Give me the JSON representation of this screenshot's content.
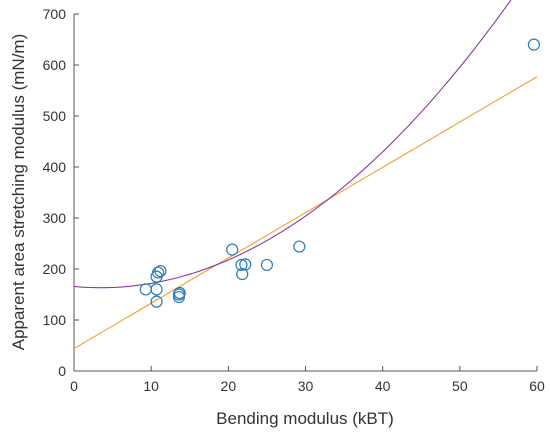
{
  "chart_data": {
    "type": "scatter",
    "xlabel": "Bending modulus (kBT)",
    "ylabel": "Apparent area stretching modulus (mN/m)",
    "xlim": [
      0,
      60
    ],
    "ylim": [
      0,
      700
    ],
    "xticks": [
      0,
      10,
      20,
      30,
      40,
      50,
      60
    ],
    "yticks": [
      0,
      100,
      200,
      300,
      400,
      500,
      600,
      700
    ],
    "xtick_labels": [
      "0",
      "10",
      "20",
      "30",
      "40",
      "50",
      "60"
    ],
    "ytick_labels": [
      "0",
      "100",
      "200",
      "300",
      "400",
      "500",
      "600",
      "700"
    ],
    "grid": false,
    "legend": "none",
    "points": {
      "color": "#2b7bb9",
      "marker": "open-circle",
      "x": [
        9.3,
        10.7,
        10.7,
        10.7,
        10.9,
        11.2,
        13.6,
        13.6,
        13.7,
        20.5,
        21.7,
        21.8,
        22.2,
        25.0,
        29.2,
        59.6
      ],
      "y": [
        160,
        160,
        136,
        185,
        193,
        196,
        145,
        150,
        153,
        238,
        208,
        190,
        209,
        208,
        244,
        640
      ]
    },
    "lines": [
      {
        "kind": "linear-fit",
        "color": "#f0a030",
        "x": [
          0,
          60
        ],
        "y": [
          44,
          577
        ]
      },
      {
        "kind": "quadratic-fit",
        "color": "#8b3a9b",
        "coefficients": [
          165.8,
          -1.4,
          0.2,
          0
        ]
      }
    ]
  }
}
